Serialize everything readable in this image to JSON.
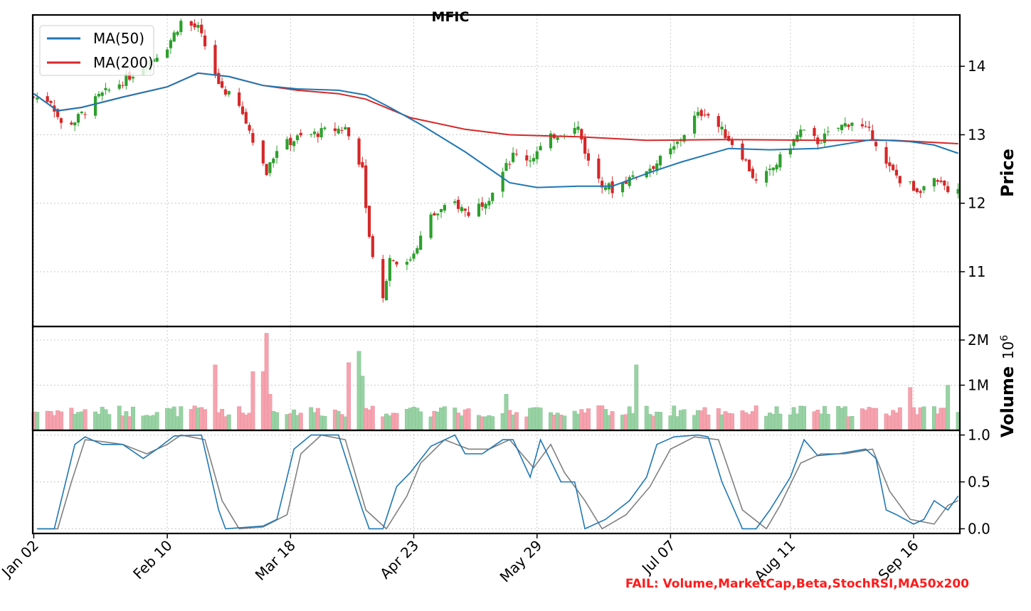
{
  "colors": {
    "up": "#2ca02c",
    "down": "#d62728",
    "ma50": "#1f77b4",
    "ma200": "#d62728",
    "vol_up": "#98d2a4",
    "vol_down": "#f5a3ae",
    "stoch_k": "#1f77b4",
    "stoch_d": "#808080",
    "fail": "#ff1a1a"
  },
  "fail_text": "FAIL: Volume,MarketCap,Beta,StochRSI,MA50x200",
  "chart_data": [
    {
      "type": "candlestick",
      "title": "MFIC",
      "ylabel": "Price",
      "ylim": [
        10.2,
        14.75
      ],
      "yticks": [
        11,
        12,
        13,
        14
      ],
      "x_ticks": [
        {
          "label": "Jan 02",
          "date": "2025-01-02"
        },
        {
          "label": "Feb 10",
          "date": "2025-02-10"
        },
        {
          "label": "Mar 18",
          "date": "2025-03-18"
        },
        {
          "label": "Apr 23",
          "date": "2025-04-23"
        },
        {
          "label": "May 29",
          "date": "2025-05-29"
        },
        {
          "label": "Jul 07",
          "date": "2025-07-07"
        },
        {
          "label": "Aug 11",
          "date": "2025-08-11"
        },
        {
          "label": "Sep 16",
          "date": "2025-09-16"
        }
      ],
      "x_range": [
        "2025-01-02",
        "2025-09-29"
      ],
      "grid": true,
      "legend": {
        "position": "top-left",
        "entries": [
          "MA(50)",
          "MA(200)"
        ]
      },
      "price_keypoints": [
        [
          "2025-01-02",
          13.55
        ],
        [
          "2025-01-07",
          13.5
        ],
        [
          "2025-01-10",
          13.15
        ],
        [
          "2025-01-14",
          13.2
        ],
        [
          "2025-01-21",
          13.55
        ],
        [
          "2025-01-27",
          13.75
        ],
        [
          "2025-02-03",
          14.0
        ],
        [
          "2025-02-10",
          14.3
        ],
        [
          "2025-02-14",
          14.65
        ],
        [
          "2025-02-19",
          14.55
        ],
        [
          "2025-02-21",
          14.3
        ],
        [
          "2025-02-25",
          13.75
        ],
        [
          "2025-03-03",
          13.4
        ],
        [
          "2025-03-07",
          12.95
        ],
        [
          "2025-03-11",
          12.45
        ],
        [
          "2025-03-14",
          12.8
        ],
        [
          "2025-03-20",
          12.95
        ],
        [
          "2025-03-28",
          13.05
        ],
        [
          "2025-04-03",
          13.1
        ],
        [
          "2025-04-08",
          12.5
        ],
        [
          "2025-04-10",
          11.5
        ],
        [
          "2025-04-14",
          10.6
        ],
        [
          "2025-04-16",
          11.2
        ],
        [
          "2025-04-21",
          11.1
        ],
        [
          "2025-04-28",
          11.8
        ],
        [
          "2025-05-05",
          12.0
        ],
        [
          "2025-05-09",
          11.85
        ],
        [
          "2025-05-15",
          12.1
        ],
        [
          "2025-05-19",
          12.45
        ],
        [
          "2025-05-22",
          12.7
        ],
        [
          "2025-05-27",
          12.65
        ],
        [
          "2025-06-03",
          13.0
        ],
        [
          "2025-06-10",
          13.1
        ],
        [
          "2025-06-13",
          12.6
        ],
        [
          "2025-06-17",
          12.3
        ],
        [
          "2025-06-20",
          12.2
        ],
        [
          "2025-06-26",
          12.4
        ],
        [
          "2025-07-02",
          12.55
        ],
        [
          "2025-07-08",
          12.8
        ],
        [
          "2025-07-14",
          13.25
        ],
        [
          "2025-07-17",
          13.35
        ],
        [
          "2025-07-23",
          13.0
        ],
        [
          "2025-07-28",
          12.7
        ],
        [
          "2025-08-01",
          12.3
        ],
        [
          "2025-08-05",
          12.45
        ],
        [
          "2025-08-11",
          12.85
        ],
        [
          "2025-08-14",
          13.05
        ],
        [
          "2025-08-19",
          12.9
        ],
        [
          "2025-08-25",
          13.1
        ],
        [
          "2025-08-29",
          13.2
        ],
        [
          "2025-09-04",
          13.0
        ],
        [
          "2025-09-08",
          12.55
        ],
        [
          "2025-09-12",
          12.35
        ],
        [
          "2025-09-17",
          12.2
        ],
        [
          "2025-09-22",
          12.3
        ],
        [
          "2025-09-29",
          12.15
        ]
      ],
      "ma50": [
        [
          "2025-01-02",
          13.6
        ],
        [
          "2025-01-09",
          13.35
        ],
        [
          "2025-01-16",
          13.4
        ],
        [
          "2025-01-28",
          13.55
        ],
        [
          "2025-02-10",
          13.7
        ],
        [
          "2025-02-19",
          13.9
        ],
        [
          "2025-02-28",
          13.85
        ],
        [
          "2025-03-10",
          13.72
        ],
        [
          "2025-03-20",
          13.67
        ],
        [
          "2025-04-01",
          13.65
        ],
        [
          "2025-04-09",
          13.58
        ],
        [
          "2025-04-16",
          13.4
        ],
        [
          "2025-04-25",
          13.15
        ],
        [
          "2025-05-08",
          12.75
        ],
        [
          "2025-05-21",
          12.3
        ],
        [
          "2025-05-29",
          12.23
        ],
        [
          "2025-06-10",
          12.25
        ],
        [
          "2025-06-20",
          12.25
        ],
        [
          "2025-07-01",
          12.45
        ],
        [
          "2025-07-10",
          12.6
        ],
        [
          "2025-07-24",
          12.8
        ],
        [
          "2025-08-05",
          12.78
        ],
        [
          "2025-08-19",
          12.8
        ],
        [
          "2025-09-04",
          12.93
        ],
        [
          "2025-09-15",
          12.9
        ],
        [
          "2025-09-22",
          12.85
        ],
        [
          "2025-09-29",
          12.73
        ]
      ],
      "ma200": [
        [
          "2025-01-02",
          13.6
        ],
        [
          "2025-01-09",
          13.35
        ],
        [
          "2025-01-16",
          13.4
        ],
        [
          "2025-01-28",
          13.55
        ],
        [
          "2025-02-10",
          13.7
        ],
        [
          "2025-02-19",
          13.9
        ],
        [
          "2025-02-28",
          13.85
        ],
        [
          "2025-03-10",
          13.72
        ],
        [
          "2025-03-20",
          13.65
        ],
        [
          "2025-04-01",
          13.6
        ],
        [
          "2025-04-09",
          13.52
        ],
        [
          "2025-04-22",
          13.25
        ],
        [
          "2025-05-08",
          13.08
        ],
        [
          "2025-05-21",
          13.0
        ],
        [
          "2025-06-10",
          12.97
        ],
        [
          "2025-06-30",
          12.92
        ],
        [
          "2025-07-24",
          12.93
        ],
        [
          "2025-08-20",
          12.92
        ],
        [
          "2025-09-10",
          12.92
        ],
        [
          "2025-09-29",
          12.87
        ]
      ]
    },
    {
      "type": "bar",
      "ylabel": "Volume",
      "scale_label": "10^6",
      "ylim": [
        0,
        2.3
      ],
      "yticks": [
        {
          "value": 1,
          "label": "1M"
        },
        {
          "value": 2,
          "label": "2M"
        }
      ],
      "spikes": [
        [
          "2025-02-24",
          1.45,
          "down"
        ],
        [
          "2025-03-07",
          1.3,
          "down"
        ],
        [
          "2025-03-10",
          1.3,
          "down"
        ],
        [
          "2025-03-11",
          2.15,
          "down"
        ],
        [
          "2025-03-12",
          0.8,
          "down"
        ],
        [
          "2025-04-04",
          1.5,
          "down"
        ],
        [
          "2025-04-07",
          1.75,
          "up"
        ],
        [
          "2025-04-08",
          1.2,
          "up"
        ],
        [
          "2025-05-20",
          0.8,
          "up"
        ],
        [
          "2025-06-27",
          1.45,
          "up"
        ],
        [
          "2025-09-15",
          0.95,
          "down"
        ],
        [
          "2025-09-26",
          1.0,
          "up"
        ]
      ],
      "baseline": 0.3
    },
    {
      "type": "line",
      "ylim": [
        -0.05,
        1.05
      ],
      "yticks": [
        0.0,
        0.5,
        1.0
      ],
      "series": [
        {
          "key": "k",
          "values": [
            [
              "2025-01-03",
              0.0
            ],
            [
              "2025-01-08",
              0.0
            ],
            [
              "2025-01-10",
              0.3
            ],
            [
              "2025-01-14",
              0.9
            ],
            [
              "2025-01-17",
              0.98
            ],
            [
              "2025-01-22",
              0.9
            ],
            [
              "2025-01-28",
              0.9
            ],
            [
              "2025-02-03",
              0.75
            ],
            [
              "2025-02-07",
              0.85
            ],
            [
              "2025-02-12",
              0.99
            ],
            [
              "2025-02-20",
              1.0
            ],
            [
              "2025-02-25",
              0.2
            ],
            [
              "2025-02-27",
              0.0
            ],
            [
              "2025-03-10",
              0.03
            ],
            [
              "2025-03-14",
              0.1
            ],
            [
              "2025-03-19",
              0.85
            ],
            [
              "2025-03-24",
              1.0
            ],
            [
              "2025-04-01",
              1.0
            ],
            [
              "2025-04-08",
              0.2
            ],
            [
              "2025-04-10",
              0.0
            ],
            [
              "2025-04-14",
              0.0
            ],
            [
              "2025-04-18",
              0.45
            ],
            [
              "2025-04-22",
              0.6
            ],
            [
              "2025-04-28",
              0.88
            ],
            [
              "2025-05-05",
              1.0
            ],
            [
              "2025-05-08",
              0.8
            ],
            [
              "2025-05-13",
              0.8
            ],
            [
              "2025-05-19",
              0.95
            ],
            [
              "2025-05-22",
              0.95
            ],
            [
              "2025-05-27",
              0.55
            ],
            [
              "2025-05-30",
              0.95
            ],
            [
              "2025-06-05",
              0.5
            ],
            [
              "2025-06-09",
              0.5
            ],
            [
              "2025-06-12",
              0.0
            ],
            [
              "2025-06-18",
              0.1
            ],
            [
              "2025-06-25",
              0.3
            ],
            [
              "2025-06-30",
              0.55
            ],
            [
              "2025-07-03",
              0.9
            ],
            [
              "2025-07-08",
              0.98
            ],
            [
              "2025-07-15",
              1.0
            ],
            [
              "2025-07-18",
              0.98
            ],
            [
              "2025-07-22",
              0.5
            ],
            [
              "2025-07-28",
              0.0
            ],
            [
              "2025-08-01",
              0.0
            ],
            [
              "2025-08-05",
              0.2
            ],
            [
              "2025-08-11",
              0.55
            ],
            [
              "2025-08-15",
              0.95
            ],
            [
              "2025-08-19",
              0.78
            ],
            [
              "2025-08-25",
              0.8
            ],
            [
              "2025-09-02",
              0.85
            ],
            [
              "2025-09-05",
              0.75
            ],
            [
              "2025-09-08",
              0.2
            ],
            [
              "2025-09-11",
              0.15
            ],
            [
              "2025-09-16",
              0.05
            ],
            [
              "2025-09-19",
              0.1
            ],
            [
              "2025-09-22",
              0.3
            ],
            [
              "2025-09-26",
              0.2
            ],
            [
              "2025-09-29",
              0.35
            ]
          ]
        },
        {
          "key": "d",
          "values": [
            [
              "2025-01-03",
              0.0
            ],
            [
              "2025-01-09",
              0.0
            ],
            [
              "2025-01-13",
              0.5
            ],
            [
              "2025-01-17",
              0.95
            ],
            [
              "2025-01-22",
              0.93
            ],
            [
              "2025-01-28",
              0.9
            ],
            [
              "2025-02-04",
              0.8
            ],
            [
              "2025-02-10",
              0.9
            ],
            [
              "2025-02-14",
              1.0
            ],
            [
              "2025-02-21",
              0.95
            ],
            [
              "2025-02-26",
              0.3
            ],
            [
              "2025-03-03",
              0.0
            ],
            [
              "2025-03-10",
              0.02
            ],
            [
              "2025-03-17",
              0.15
            ],
            [
              "2025-03-21",
              0.8
            ],
            [
              "2025-03-27",
              1.0
            ],
            [
              "2025-04-03",
              0.95
            ],
            [
              "2025-04-09",
              0.2
            ],
            [
              "2025-04-15",
              0.0
            ],
            [
              "2025-04-21",
              0.35
            ],
            [
              "2025-04-25",
              0.7
            ],
            [
              "2025-05-02",
              0.95
            ],
            [
              "2025-05-09",
              0.85
            ],
            [
              "2025-05-15",
              0.85
            ],
            [
              "2025-05-21",
              0.95
            ],
            [
              "2025-05-28",
              0.65
            ],
            [
              "2025-06-02",
              0.9
            ],
            [
              "2025-06-06",
              0.6
            ],
            [
              "2025-06-12",
              0.3
            ],
            [
              "2025-06-17",
              0.0
            ],
            [
              "2025-06-24",
              0.15
            ],
            [
              "2025-07-01",
              0.45
            ],
            [
              "2025-07-07",
              0.85
            ],
            [
              "2025-07-14",
              0.98
            ],
            [
              "2025-07-21",
              0.95
            ],
            [
              "2025-07-28",
              0.2
            ],
            [
              "2025-08-04",
              0.0
            ],
            [
              "2025-08-08",
              0.25
            ],
            [
              "2025-08-14",
              0.7
            ],
            [
              "2025-08-20",
              0.8
            ],
            [
              "2025-08-27",
              0.8
            ],
            [
              "2025-09-04",
              0.85
            ],
            [
              "2025-09-09",
              0.4
            ],
            [
              "2025-09-15",
              0.1
            ],
            [
              "2025-09-22",
              0.05
            ],
            [
              "2025-09-26",
              0.25
            ],
            [
              "2025-09-29",
              0.3
            ]
          ]
        }
      ]
    }
  ]
}
